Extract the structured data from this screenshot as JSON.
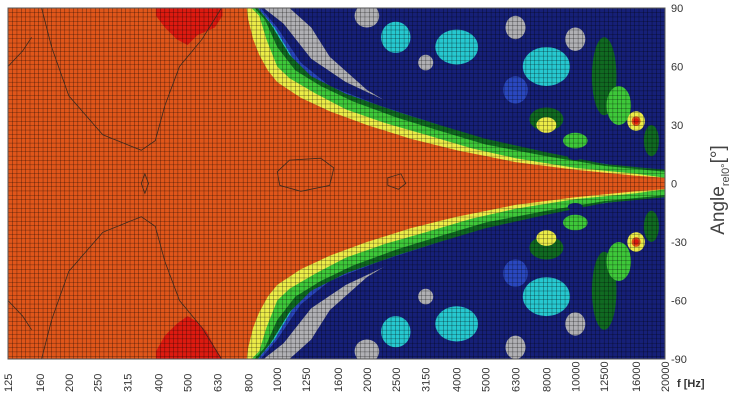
{
  "chart_data": {
    "type": "heatmap",
    "x": {
      "scale": "log",
      "label": "f",
      "unit": "[Hz]",
      "ticks": [
        "125",
        "160",
        "200",
        "250",
        "315",
        "400",
        "500",
        "630",
        "800",
        "1000",
        "1250",
        "1600",
        "2000",
        "2500",
        "3150",
        "4000",
        "5000",
        "6300",
        "8000",
        "10000",
        "12500",
        "16000",
        "20000"
      ]
    },
    "y": {
      "label_main": "Angle",
      "label_sub": "rel0°",
      "unit": "[°]",
      "range": [
        -90,
        90
      ],
      "ticks": [
        90,
        60,
        30,
        0,
        -30,
        -60,
        -90
      ]
    },
    "grid": true,
    "color_levels": [
      {
        "name": "red",
        "color": "#dd1a10"
      },
      {
        "name": "orange",
        "color": "#e0561a"
      },
      {
        "name": "yellow",
        "color": "#ecec48"
      },
      {
        "name": "light-green",
        "color": "#3ec83a"
      },
      {
        "name": "dark-green",
        "color": "#106a22"
      },
      {
        "name": "cyan",
        "color": "#26c8d0"
      },
      {
        "name": "blue",
        "color": "#2a48c0"
      },
      {
        "name": "navy",
        "color": "#162078"
      },
      {
        "name": "gray",
        "color": "#b0b0b4"
      }
    ],
    "regions": {
      "beam_orange_until_hz": 800,
      "red_lobes": [
        {
          "f_range": [
            400,
            630
          ],
          "angle_range": [
            68,
            90
          ]
        },
        {
          "f_range": [
            400,
            630
          ],
          "angle_range": [
            -90,
            -68
          ]
        }
      ],
      "hot_spots": [
        {
          "f": 16000,
          "angle": 32
        },
        {
          "f": 16000,
          "angle": -30
        }
      ]
    }
  }
}
